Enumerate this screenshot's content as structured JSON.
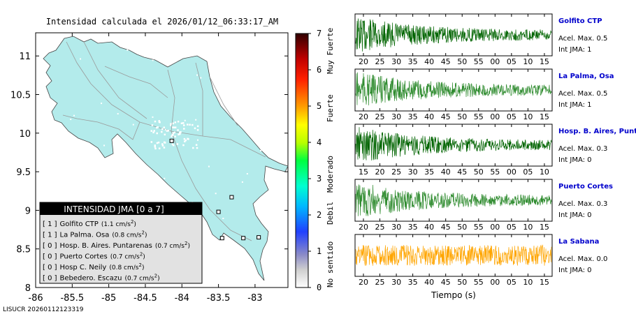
{
  "map": {
    "title": "Intensidad calculada el 2026/01/12_06:33:17_AM",
    "footer": "LISUCR 20260112123319",
    "xlim": [
      -86,
      -82.55
    ],
    "ylim": [
      8,
      11.3
    ],
    "xticks": [
      "-86",
      "-85.5",
      "-85",
      "-84.5",
      "-84",
      "-83.5",
      "-83"
    ],
    "yticks": [
      "8",
      "8.5",
      "9",
      "9.5",
      "10",
      "10.5",
      "11"
    ],
    "land_color": "#b3ebeb",
    "colorbar": {
      "ticks": [
        "0",
        "1",
        "2",
        "3",
        "4",
        "5",
        "6",
        "7"
      ],
      "labels": [
        "No sentido",
        "Debil",
        "Moderado",
        "Fuerte",
        "Muy Fuerte"
      ]
    },
    "legend": {
      "title": "INTENSIDAD JMA [0 a 7]",
      "items": [
        {
          "int": "[ 1 ]",
          "text": "Golfito CTP",
          "value": "(1.1 cm/s",
          "sup": "2",
          "close": ")"
        },
        {
          "int": "[ 1 ]",
          "text": "La Palma. Osa",
          "value": "(0.8 cm/s",
          "sup": "2",
          "close": ")"
        },
        {
          "int": "[ 0 ]",
          "text": "Hosp. B. Aires. Puntarenas",
          "value": "(0.7 cm/s",
          "sup": "2",
          "close": ")"
        },
        {
          "int": "[ 0 ]",
          "text": "Puerto Cortes",
          "value": "(0.7 cm/s",
          "sup": "2",
          "close": ")"
        },
        {
          "int": "[ 0 ]",
          "text": "Hosp C. Neily",
          "value": "(0.8 cm/s",
          "sup": "2",
          "close": ")"
        },
        {
          "int": "[ 0 ]",
          "text": "Bebedero. Escazu",
          "value": "(0.7 cm/s",
          "sup": "2",
          "close": ")"
        }
      ]
    }
  },
  "chart_data": [
    {
      "type": "scatter",
      "title": "Intensidad calculada el 2026/01/12_06:33:17_AM",
      "xlim": [
        -86,
        -82.55
      ],
      "ylim": [
        8,
        11.3
      ],
      "series": [
        {
          "name": "Golfito CTP",
          "x": [
            -83.16
          ],
          "y": [
            8.64
          ],
          "jma": 1
        },
        {
          "name": "La Palma. Osa",
          "x": [
            -83.45
          ],
          "y": [
            8.64
          ],
          "jma": 1
        },
        {
          "name": "Hosp. B. Aires. Puntarenas",
          "x": [
            -83.32
          ],
          "y": [
            9.17
          ],
          "jma": 0
        },
        {
          "name": "Puerto Cortes",
          "x": [
            -83.5
          ],
          "y": [
            8.98
          ],
          "jma": 0
        },
        {
          "name": "Hosp C. Neily",
          "x": [
            -82.95
          ],
          "y": [
            8.65
          ],
          "jma": 0
        },
        {
          "name": "Bebedero. Escazu",
          "x": [
            -84.14
          ],
          "y": [
            9.9
          ],
          "jma": 0
        }
      ]
    },
    {
      "type": "line",
      "xlabel": "Tiempo (s)",
      "panels": [
        {
          "name": "Golfito CTP",
          "acel": "Acel. Max. 0.5",
          "int": "Int JMA: 1",
          "color": "#006400",
          "ticks": [
            "20",
            "25",
            "30",
            "35",
            "40",
            "45",
            "50",
            "55",
            "00",
            "05",
            "10",
            "15"
          ]
        },
        {
          "name": "La Palma, Osa",
          "acel": "Acel. Max. 0.5",
          "int": "Int JMA: 1",
          "color": "#2e8b2e",
          "ticks": [
            "20",
            "25",
            "30",
            "35",
            "40",
            "45",
            "50",
            "55",
            "00",
            "05",
            "10",
            "15"
          ]
        },
        {
          "name": "Hosp. B. Aires, Puntare",
          "acel": "Acel. Max. 0.3",
          "int": "Int JMA: 0",
          "color": "#006400",
          "ticks": [
            "15",
            "20",
            "25",
            "30",
            "35",
            "40",
            "45",
            "50",
            "55",
            "00",
            "05",
            "10"
          ]
        },
        {
          "name": "Puerto Cortes",
          "acel": "Acel. Max. 0.3",
          "int": "Int JMA: 0",
          "color": "#2e8b2e",
          "ticks": [
            "20",
            "25",
            "30",
            "35",
            "40",
            "45",
            "50",
            "55",
            "00",
            "05",
            "10",
            "15"
          ]
        },
        {
          "name": "La Sabana",
          "acel": "Acel. Max. 0.0",
          "int": "Int JMA: 0",
          "color": "#ffa500",
          "ticks": [
            "20",
            "25",
            "30",
            "35",
            "40",
            "45",
            "50",
            "55",
            "00",
            "05",
            "10",
            "15"
          ]
        }
      ]
    }
  ]
}
